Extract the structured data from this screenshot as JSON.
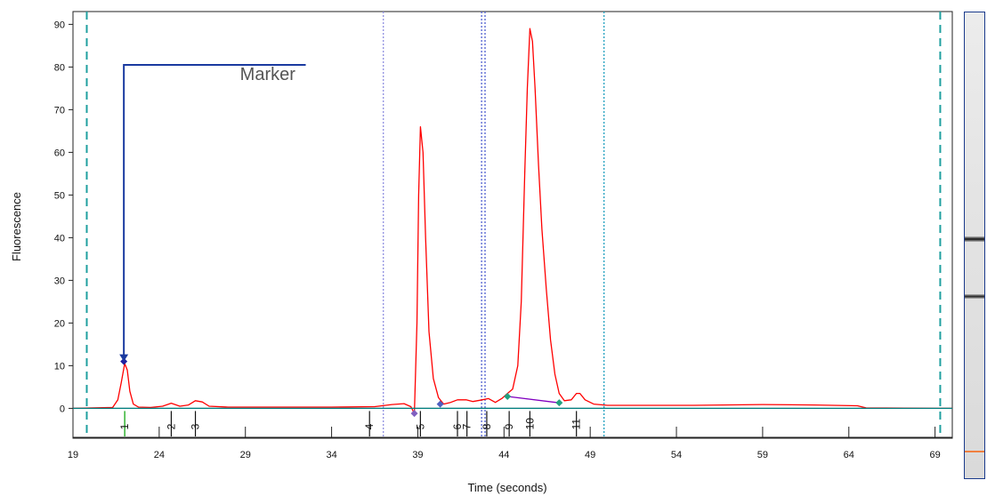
{
  "chart_data": {
    "type": "line",
    "xlabel": "Time (seconds)",
    "ylabel": "Fluorescence",
    "xlim": [
      19,
      70
    ],
    "ylim": [
      -7,
      93
    ],
    "x_ticks": [
      19,
      24,
      29,
      34,
      39,
      44,
      49,
      54,
      59,
      64,
      69
    ],
    "x_tick_labels": [
      "19",
      "24",
      "29",
      "34",
      "39",
      "44",
      "49",
      "54",
      "59",
      "64",
      "69"
    ],
    "y_ticks": [
      0,
      10,
      20,
      30,
      40,
      50,
      60,
      70,
      80,
      90
    ],
    "y_tick_labels": [
      "0",
      "10",
      "20",
      "30",
      "40",
      "50",
      "60",
      "70",
      "80",
      "90"
    ],
    "series": [
      {
        "color": "#ff0000",
        "points": [
          [
            19,
            0
          ],
          [
            21.3,
            0.2
          ],
          [
            21.6,
            2
          ],
          [
            21.8,
            6
          ],
          [
            22.0,
            10.5
          ],
          [
            22.15,
            9
          ],
          [
            22.3,
            4
          ],
          [
            22.5,
            1
          ],
          [
            22.8,
            0.3
          ],
          [
            23.5,
            0.2
          ],
          [
            24.2,
            0.5
          ],
          [
            24.7,
            1.2
          ],
          [
            25.2,
            0.5
          ],
          [
            25.7,
            0.8
          ],
          [
            26.1,
            1.8
          ],
          [
            26.5,
            1.5
          ],
          [
            26.9,
            0.5
          ],
          [
            28,
            0.3
          ],
          [
            34,
            0.3
          ],
          [
            36.5,
            0.4
          ],
          [
            37.5,
            0.9
          ],
          [
            38.2,
            1.1
          ],
          [
            38.6,
            0.4
          ],
          [
            38.8,
            -1.2
          ],
          [
            38.95,
            20
          ],
          [
            39.05,
            50
          ],
          [
            39.15,
            66
          ],
          [
            39.3,
            60
          ],
          [
            39.45,
            40
          ],
          [
            39.65,
            18
          ],
          [
            39.9,
            7
          ],
          [
            40.2,
            2.5
          ],
          [
            40.5,
            1
          ],
          [
            40.9,
            1.4
          ],
          [
            41.3,
            2
          ],
          [
            41.8,
            2.0
          ],
          [
            42.2,
            1.6
          ],
          [
            42.6,
            1.9
          ],
          [
            43.1,
            2.3
          ],
          [
            43.5,
            1.4
          ],
          [
            43.9,
            2.4
          ],
          [
            44.2,
            3.5
          ],
          [
            44.5,
            4.5
          ],
          [
            44.8,
            10
          ],
          [
            45.0,
            25
          ],
          [
            45.2,
            55
          ],
          [
            45.35,
            75
          ],
          [
            45.5,
            89
          ],
          [
            45.65,
            86
          ],
          [
            45.8,
            75
          ],
          [
            46.0,
            57
          ],
          [
            46.2,
            42
          ],
          [
            46.45,
            28
          ],
          [
            46.7,
            16
          ],
          [
            46.95,
            8
          ],
          [
            47.2,
            3.5
          ],
          [
            47.5,
            1.8
          ],
          [
            47.9,
            2
          ],
          [
            48.2,
            3.5
          ],
          [
            48.4,
            3.5
          ],
          [
            48.7,
            2
          ],
          [
            49.2,
            1
          ],
          [
            50,
            0.7
          ],
          [
            55,
            0.7
          ],
          [
            59,
            0.9
          ],
          [
            62,
            0.8
          ],
          [
            64.5,
            0.6
          ],
          [
            65,
            0.1
          ],
          [
            69,
            0
          ],
          [
            70,
            0
          ]
        ]
      },
      {
        "color": "#8000c0",
        "points": [
          [
            44.2,
            2.8
          ],
          [
            47.2,
            1.3
          ]
        ]
      },
      {
        "color": "#008080",
        "points": [
          [
            19,
            0
          ],
          [
            70,
            0
          ]
        ]
      }
    ],
    "vertical_lines": [
      {
        "x": 19.8,
        "color": "#20a0a0",
        "style": "dashed"
      },
      {
        "x": 69.3,
        "color": "#20a0a0",
        "style": "dashed"
      },
      {
        "x": 37.0,
        "color": "#9090e0",
        "style": "dotted"
      },
      {
        "x": 42.7,
        "color": "#5060d0",
        "style": "dotted"
      },
      {
        "x": 42.9,
        "color": "#5060d0",
        "style": "dotted"
      },
      {
        "x": 49.8,
        "color": "#20a0c0",
        "style": "dotted"
      }
    ],
    "peak_points": [
      {
        "x": 21.95,
        "y": 11,
        "color": "#2020a0"
      },
      {
        "x": 38.8,
        "y": -1.2,
        "color": "#8060c0"
      },
      {
        "x": 40.3,
        "y": 1.0,
        "color": "#5060c0"
      },
      {
        "x": 44.2,
        "y": 2.8,
        "color": "#20a080"
      },
      {
        "x": 47.2,
        "y": 1.3,
        "color": "#20a080"
      }
    ],
    "peak_labels": [
      {
        "label": "1",
        "x": 22.0,
        "color": "#00a000"
      },
      {
        "label": "2",
        "x": 24.7,
        "color": "#111111"
      },
      {
        "label": "3",
        "x": 26.1,
        "color": "#111111"
      },
      {
        "label": "4",
        "x": 36.2,
        "color": "#111111"
      },
      {
        "label": "5",
        "x": 39.15,
        "color": "#111111"
      },
      {
        "label": "6",
        "x": 41.3,
        "color": "#111111"
      },
      {
        "label": "7",
        "x": 41.85,
        "color": "#111111"
      },
      {
        "label": "8",
        "x": 43.0,
        "color": "#111111"
      },
      {
        "label": "9",
        "x": 44.3,
        "color": "#111111"
      },
      {
        "label": "10",
        "x": 45.5,
        "color": "#111111"
      },
      {
        "label": "11",
        "x": 48.2,
        "color": "#111111"
      }
    ],
    "annotation": {
      "text": "Marker",
      "color": "#1a3aa0",
      "bracket_top_y": 80.5,
      "bracket_x_start": 21.95,
      "bracket_x_end": 32.5,
      "arrow_to_y": 11,
      "text_x": 31.9,
      "text_y": 77
    },
    "gel_panel": {
      "bands": [
        "dark",
        "dark",
        "orange"
      ]
    }
  }
}
